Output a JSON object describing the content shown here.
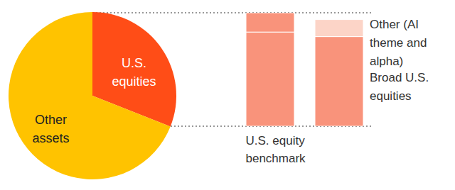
{
  "chart_data": [
    {
      "type": "pie",
      "categories": [
        "U.S. equities",
        "Other assets"
      ],
      "values": [
        31,
        69
      ],
      "colors": [
        "#ff4d17",
        "#ffc300"
      ]
    },
    {
      "type": "bar",
      "stacked": true,
      "categories": [
        "U.S. equity benchmark",
        null
      ],
      "series": [
        {
          "name": "Broad U.S. equities",
          "color": "#f9937b",
          "values": [
            83,
            79
          ]
        },
        {
          "name": "Other (AI theme and alpha)",
          "colors": [
            "#f9937b",
            "#fcd4c7"
          ],
          "values": [
            17,
            15
          ]
        }
      ],
      "ylim": [
        0,
        100
      ],
      "yticks": [
        0,
        100
      ],
      "grid": true,
      "tick_labels": "x"
    }
  ]
}
